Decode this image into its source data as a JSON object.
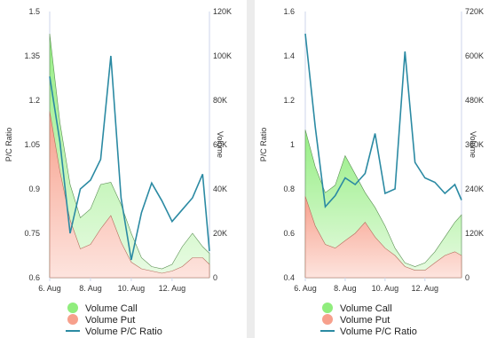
{
  "chart_data": [
    {
      "type": "area",
      "ylabel_left": "P/C Ratio",
      "ylabel_right": "Volume",
      "x_ticks": [
        "6. Aug",
        "8. Aug",
        "10. Aug",
        "12. Aug"
      ],
      "x_range": [
        "2023-08-06",
        "2023-08-13 20:00"
      ],
      "y_left_range": [
        0.6,
        1.5
      ],
      "y_left_ticks": [
        "1.5",
        "1.35",
        "1.2",
        "1.05",
        "0.9",
        "0.75",
        "0.6"
      ],
      "y_right_range": [
        0,
        120000
      ],
      "y_right_ticks": [
        "120K",
        "100K",
        "80K",
        "60K",
        "40K",
        "20K",
        "0"
      ],
      "colors": {
        "call": "#90ed7d",
        "put": "#f7a08c",
        "ratio": "#2b8aa3"
      },
      "legend": [
        "Volume Call",
        "Volume Put",
        "Volume P/C Ratio"
      ],
      "x": [
        "2023-08-06 00:00",
        "2023-08-06 12:00",
        "2023-08-07 00:00",
        "2023-08-07 12:00",
        "2023-08-08 00:00",
        "2023-08-08 12:00",
        "2023-08-09 00:00",
        "2023-08-09 12:00",
        "2023-08-10 00:00",
        "2023-08-10 12:00",
        "2023-08-11 00:00",
        "2023-08-11 12:00",
        "2023-08-12 00:00",
        "2023-08-12 12:00",
        "2023-08-13 00:00",
        "2023-08-13 12:00",
        "2023-08-13 20:00"
      ],
      "series": [
        {
          "name": "Volume Call",
          "axis": "right",
          "values": [
            110000,
            70000,
            42000,
            27000,
            31000,
            42000,
            43000,
            33000,
            20000,
            9000,
            5000,
            4000,
            6000,
            14000,
            20000,
            14000,
            11000
          ]
        },
        {
          "name": "Volume Put",
          "axis": "right",
          "values": [
            75000,
            48000,
            26000,
            13000,
            15000,
            22000,
            28000,
            16000,
            7000,
            4000,
            3000,
            2000,
            3000,
            5000,
            9000,
            9000,
            6000
          ]
        },
        {
          "name": "Volume P/C Ratio",
          "axis": "left",
          "values": [
            1.28,
            1.06,
            0.75,
            0.9,
            0.93,
            1.0,
            1.35,
            0.87,
            0.66,
            0.82,
            0.92,
            0.86,
            0.79,
            0.83,
            0.87,
            0.95,
            0.69
          ]
        }
      ]
    },
    {
      "type": "area",
      "ylabel_left": "P/C Ratio",
      "ylabel_right": "Volume",
      "x_ticks": [
        "6. Aug",
        "8. Aug",
        "10. Aug",
        "12. Aug"
      ],
      "x_range": [
        "2023-08-06",
        "2023-08-13 20:00"
      ],
      "y_left_range": [
        0.4,
        1.6
      ],
      "y_left_ticks": [
        "1.6",
        "1.4",
        "1.2",
        "1",
        "0.8",
        "0.6",
        "0.4"
      ],
      "y_right_range": [
        0,
        720000
      ],
      "y_right_ticks": [
        "720K",
        "600K",
        "480K",
        "360K",
        "240K",
        "120K",
        "0"
      ],
      "colors": {
        "call": "#90ed7d",
        "put": "#f7a08c",
        "ratio": "#2b8aa3"
      },
      "legend": [
        "Volume Call",
        "Volume Put",
        "Volume P/C Ratio"
      ],
      "x": [
        "2023-08-06 00:00",
        "2023-08-06 12:00",
        "2023-08-07 00:00",
        "2023-08-07 12:00",
        "2023-08-08 00:00",
        "2023-08-08 12:00",
        "2023-08-09 00:00",
        "2023-08-09 12:00",
        "2023-08-10 00:00",
        "2023-08-10 12:00",
        "2023-08-11 00:00",
        "2023-08-11 12:00",
        "2023-08-12 00:00",
        "2023-08-12 12:00",
        "2023-08-13 00:00",
        "2023-08-13 12:00",
        "2023-08-13 20:00"
      ],
      "series": [
        {
          "name": "Volume Call",
          "axis": "right",
          "values": [
            400000,
            300000,
            230000,
            250000,
            330000,
            280000,
            230000,
            190000,
            140000,
            80000,
            40000,
            30000,
            40000,
            70000,
            110000,
            150000,
            170000
          ]
        },
        {
          "name": "Volume Put",
          "axis": "right",
          "values": [
            220000,
            140000,
            90000,
            80000,
            100000,
            120000,
            150000,
            110000,
            80000,
            60000,
            30000,
            20000,
            20000,
            40000,
            60000,
            70000,
            60000
          ]
        },
        {
          "name": "Volume P/C Ratio",
          "axis": "left",
          "values": [
            1.5,
            1.08,
            0.72,
            0.77,
            0.85,
            0.82,
            0.87,
            1.05,
            0.78,
            0.8,
            1.42,
            0.92,
            0.85,
            0.83,
            0.78,
            0.82,
            0.75
          ]
        }
      ]
    }
  ]
}
